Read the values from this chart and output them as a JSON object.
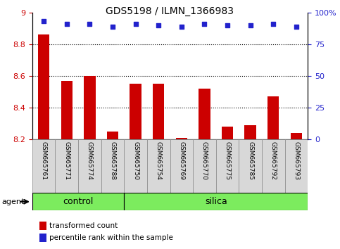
{
  "title": "GDS5198 / ILMN_1366983",
  "samples": [
    "GSM665761",
    "GSM665771",
    "GSM665774",
    "GSM665788",
    "GSM665750",
    "GSM665754",
    "GSM665769",
    "GSM665770",
    "GSM665775",
    "GSM665785",
    "GSM665792",
    "GSM665793"
  ],
  "transformed_count": [
    8.86,
    8.57,
    8.6,
    8.25,
    8.55,
    8.55,
    8.21,
    8.52,
    8.28,
    8.29,
    8.47,
    8.24
  ],
  "percentile_rank": [
    93,
    91,
    91,
    89,
    91,
    90,
    89,
    91,
    90,
    90,
    91,
    89
  ],
  "ylim_left": [
    8.2,
    9.0
  ],
  "ylim_right": [
    0,
    100
  ],
  "yticks_left": [
    8.2,
    8.4,
    8.6,
    8.8,
    9.0
  ],
  "ytick_labels_left": [
    "8.2",
    "8.4",
    "8.6",
    "8.8",
    "9"
  ],
  "yticks_right": [
    0,
    25,
    50,
    75,
    100
  ],
  "ytick_labels_right": [
    "0",
    "25",
    "50",
    "75",
    "100%"
  ],
  "grid_values": [
    8.4,
    8.6,
    8.8
  ],
  "bar_color": "#cc0000",
  "dot_color": "#2222cc",
  "control_samples": 4,
  "silica_samples": 8,
  "control_label": "control",
  "silica_label": "silica",
  "agent_label": "agent",
  "legend_bar_label": "transformed count",
  "legend_dot_label": "percentile rank within the sample",
  "bar_width": 0.5,
  "control_color": "#7cec5e",
  "silica_color": "#7cec5e",
  "tick_color_left": "#cc0000",
  "tick_color_right": "#2222cc",
  "label_box_color": "#d8d8d8",
  "plot_bg": "#ffffff"
}
